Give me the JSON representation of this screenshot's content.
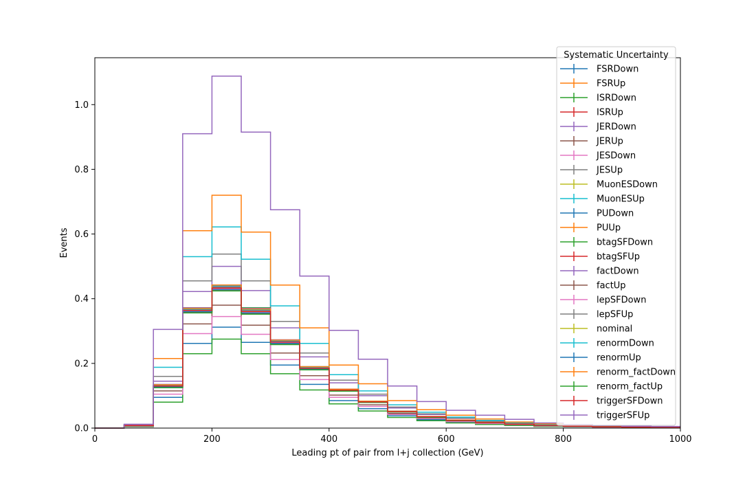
{
  "chart_data": {
    "type": "step-histogram",
    "xlabel": "Leading pt of pair from l+j collection (GeV)",
    "ylabel": "Events",
    "xlim": [
      0,
      1000
    ],
    "ylim": [
      0,
      1.145
    ],
    "xticks": [
      0,
      200,
      400,
      600,
      800,
      1000
    ],
    "yticks": [
      0.0,
      0.2,
      0.4,
      0.6,
      0.8,
      1.0
    ],
    "xtick_labels": [
      "0",
      "200",
      "400",
      "600",
      "800",
      "1000"
    ],
    "ytick_labels": [
      "0.0",
      "0.2",
      "0.4",
      "0.6",
      "0.8",
      "1.0"
    ],
    "grid": false,
    "legend": {
      "title": "Systematic Uncertainty",
      "placement": "top-right"
    },
    "bin_edges": [
      0,
      50,
      100,
      150,
      200,
      250,
      300,
      350,
      400,
      450,
      500,
      550,
      600,
      650,
      700,
      750,
      800,
      850,
      900,
      950,
      1000
    ],
    "series": [
      {
        "name": "FSRDown",
        "color": "#1f77b4",
        "values": [
          0,
          0.005,
          0.095,
          0.262,
          0.312,
          0.265,
          0.195,
          0.135,
          0.085,
          0.06,
          0.038,
          0.026,
          0.018,
          0.013,
          0.009,
          0.006,
          0.004,
          0.003,
          0.002,
          0.0015
        ]
      },
      {
        "name": "FSRUp",
        "color": "#ff7f0e",
        "values": [
          0,
          0.008,
          0.13,
          0.36,
          0.43,
          0.353,
          0.265,
          0.185,
          0.115,
          0.08,
          0.05,
          0.034,
          0.024,
          0.017,
          0.012,
          0.008,
          0.005,
          0.004,
          0.003,
          0.002
        ]
      },
      {
        "name": "ISRDown",
        "color": "#2ca02c",
        "values": [
          0,
          0.004,
          0.08,
          0.23,
          0.275,
          0.23,
          0.168,
          0.118,
          0.075,
          0.053,
          0.033,
          0.023,
          0.016,
          0.011,
          0.008,
          0.005,
          0.004,
          0.003,
          0.002,
          0.0015
        ]
      },
      {
        "name": "ISRUp",
        "color": "#d62728",
        "values": [
          0,
          0.008,
          0.132,
          0.368,
          0.44,
          0.365,
          0.272,
          0.188,
          0.118,
          0.082,
          0.052,
          0.035,
          0.025,
          0.018,
          0.012,
          0.008,
          0.006,
          0.004,
          0.003,
          0.002
        ]
      },
      {
        "name": "JERDown",
        "color": "#9467bd",
        "values": [
          0,
          0.008,
          0.145,
          0.422,
          0.5,
          0.425,
          0.31,
          0.22,
          0.14,
          0.1,
          0.062,
          0.042,
          0.03,
          0.021,
          0.014,
          0.01,
          0.007,
          0.005,
          0.004,
          0.003
        ]
      },
      {
        "name": "JERUp",
        "color": "#8c564b",
        "values": [
          0,
          0.006,
          0.115,
          0.322,
          0.38,
          0.318,
          0.232,
          0.162,
          0.102,
          0.072,
          0.045,
          0.031,
          0.022,
          0.015,
          0.011,
          0.007,
          0.005,
          0.004,
          0.003,
          0.002
        ]
      },
      {
        "name": "JESDown",
        "color": "#e377c2",
        "values": [
          0,
          0.005,
          0.105,
          0.292,
          0.345,
          0.29,
          0.212,
          0.15,
          0.095,
          0.067,
          0.042,
          0.029,
          0.02,
          0.014,
          0.01,
          0.007,
          0.005,
          0.003,
          0.002,
          0.002
        ]
      },
      {
        "name": "JESUp",
        "color": "#7f7f7f",
        "values": [
          0,
          0.009,
          0.16,
          0.455,
          0.538,
          0.455,
          0.33,
          0.232,
          0.148,
          0.105,
          0.065,
          0.044,
          0.031,
          0.022,
          0.015,
          0.01,
          0.007,
          0.005,
          0.004,
          0.003
        ]
      },
      {
        "name": "MuonESDown",
        "color": "#bcbd22",
        "values": [
          0,
          0.008,
          0.128,
          0.36,
          0.428,
          0.355,
          0.263,
          0.183,
          0.116,
          0.08,
          0.051,
          0.034,
          0.024,
          0.017,
          0.012,
          0.008,
          0.006,
          0.004,
          0.003,
          0.002
        ]
      },
      {
        "name": "MuonESUp",
        "color": "#17becf",
        "values": [
          0,
          0.01,
          0.188,
          0.53,
          0.622,
          0.522,
          0.378,
          0.262,
          0.165,
          0.115,
          0.072,
          0.049,
          0.034,
          0.024,
          0.017,
          0.011,
          0.008,
          0.006,
          0.004,
          0.003
        ]
      },
      {
        "name": "PUDown",
        "color": "#1f77b4",
        "values": [
          0,
          0.008,
          0.13,
          0.37,
          0.438,
          0.368,
          0.27,
          0.187,
          0.118,
          0.082,
          0.051,
          0.035,
          0.025,
          0.018,
          0.012,
          0.008,
          0.006,
          0.004,
          0.003,
          0.002
        ]
      },
      {
        "name": "PUUp",
        "color": "#ff7f0e",
        "values": [
          0,
          0.011,
          0.215,
          0.61,
          0.72,
          0.606,
          0.442,
          0.31,
          0.195,
          0.137,
          0.085,
          0.057,
          0.04,
          0.028,
          0.019,
          0.013,
          0.009,
          0.007,
          0.005,
          0.004
        ]
      },
      {
        "name": "btagSFDown",
        "color": "#2ca02c",
        "values": [
          0,
          0.008,
          0.13,
          0.372,
          0.435,
          0.372,
          0.27,
          0.19,
          0.12,
          0.083,
          0.052,
          0.035,
          0.025,
          0.017,
          0.012,
          0.008,
          0.006,
          0.004,
          0.003,
          0.002
        ]
      },
      {
        "name": "btagSFUp",
        "color": "#d62728",
        "values": [
          0,
          0.008,
          0.132,
          0.365,
          0.442,
          0.36,
          0.27,
          0.188,
          0.12,
          0.082,
          0.052,
          0.035,
          0.025,
          0.018,
          0.012,
          0.008,
          0.006,
          0.004,
          0.003,
          0.002
        ]
      },
      {
        "name": "factDown",
        "color": "#9467bd",
        "values": [
          0,
          0.009,
          0.135,
          0.372,
          0.438,
          0.37,
          0.273,
          0.19,
          0.12,
          0.083,
          0.052,
          0.036,
          0.025,
          0.018,
          0.012,
          0.008,
          0.006,
          0.004,
          0.003,
          0.002
        ]
      },
      {
        "name": "factUp",
        "color": "#8c564b",
        "values": [
          0,
          0.007,
          0.125,
          0.358,
          0.425,
          0.355,
          0.26,
          0.182,
          0.115,
          0.08,
          0.05,
          0.034,
          0.024,
          0.017,
          0.012,
          0.008,
          0.006,
          0.004,
          0.003,
          0.002
        ]
      },
      {
        "name": "lepSFDown",
        "color": "#e377c2",
        "values": [
          0,
          0.007,
          0.128,
          0.362,
          0.43,
          0.358,
          0.264,
          0.184,
          0.116,
          0.081,
          0.051,
          0.034,
          0.024,
          0.017,
          0.012,
          0.008,
          0.006,
          0.004,
          0.003,
          0.002
        ]
      },
      {
        "name": "lepSFUp",
        "color": "#7f7f7f",
        "values": [
          0,
          0.008,
          0.131,
          0.366,
          0.436,
          0.364,
          0.268,
          0.187,
          0.118,
          0.082,
          0.052,
          0.035,
          0.025,
          0.018,
          0.012,
          0.008,
          0.006,
          0.004,
          0.003,
          0.002
        ]
      },
      {
        "name": "nominal",
        "color": "#bcbd22",
        "values": [
          0,
          0.008,
          0.13,
          0.364,
          0.433,
          0.361,
          0.266,
          0.185,
          0.117,
          0.081,
          0.051,
          0.035,
          0.024,
          0.017,
          0.012,
          0.008,
          0.006,
          0.004,
          0.003,
          0.002
        ]
      },
      {
        "name": "renormDown",
        "color": "#17becf",
        "values": [
          0,
          0.008,
          0.132,
          0.368,
          0.44,
          0.366,
          0.27,
          0.188,
          0.119,
          0.083,
          0.052,
          0.035,
          0.025,
          0.018,
          0.012,
          0.008,
          0.006,
          0.004,
          0.003,
          0.002
        ]
      },
      {
        "name": "renormUp",
        "color": "#1f77b4",
        "values": [
          0,
          0.007,
          0.127,
          0.36,
          0.428,
          0.356,
          0.262,
          0.183,
          0.116,
          0.08,
          0.05,
          0.034,
          0.024,
          0.017,
          0.012,
          0.008,
          0.006,
          0.004,
          0.003,
          0.002
        ]
      },
      {
        "name": "renorm_factDown",
        "color": "#ff7f0e",
        "values": [
          0,
          0.008,
          0.134,
          0.37,
          0.442,
          0.368,
          0.272,
          0.19,
          0.12,
          0.083,
          0.052,
          0.036,
          0.025,
          0.018,
          0.012,
          0.008,
          0.006,
          0.004,
          0.003,
          0.002
        ]
      },
      {
        "name": "renorm_factUp",
        "color": "#2ca02c",
        "values": [
          0,
          0.007,
          0.125,
          0.356,
          0.424,
          0.352,
          0.258,
          0.18,
          0.114,
          0.079,
          0.05,
          0.033,
          0.023,
          0.017,
          0.011,
          0.008,
          0.006,
          0.004,
          0.003,
          0.002
        ]
      },
      {
        "name": "triggerSFDown",
        "color": "#d62728",
        "values": [
          0,
          0.008,
          0.13,
          0.364,
          0.433,
          0.361,
          0.266,
          0.185,
          0.117,
          0.081,
          0.051,
          0.035,
          0.024,
          0.017,
          0.012,
          0.008,
          0.006,
          0.004,
          0.003,
          0.002
        ]
      },
      {
        "name": "triggerSFUp",
        "color": "#9467bd",
        "values": [
          0,
          0.012,
          0.305,
          0.91,
          1.088,
          0.915,
          0.675,
          0.47,
          0.302,
          0.213,
          0.13,
          0.082,
          0.055,
          0.04,
          0.027,
          0.016,
          0.011,
          0.008,
          0.006,
          0.005
        ]
      }
    ]
  }
}
